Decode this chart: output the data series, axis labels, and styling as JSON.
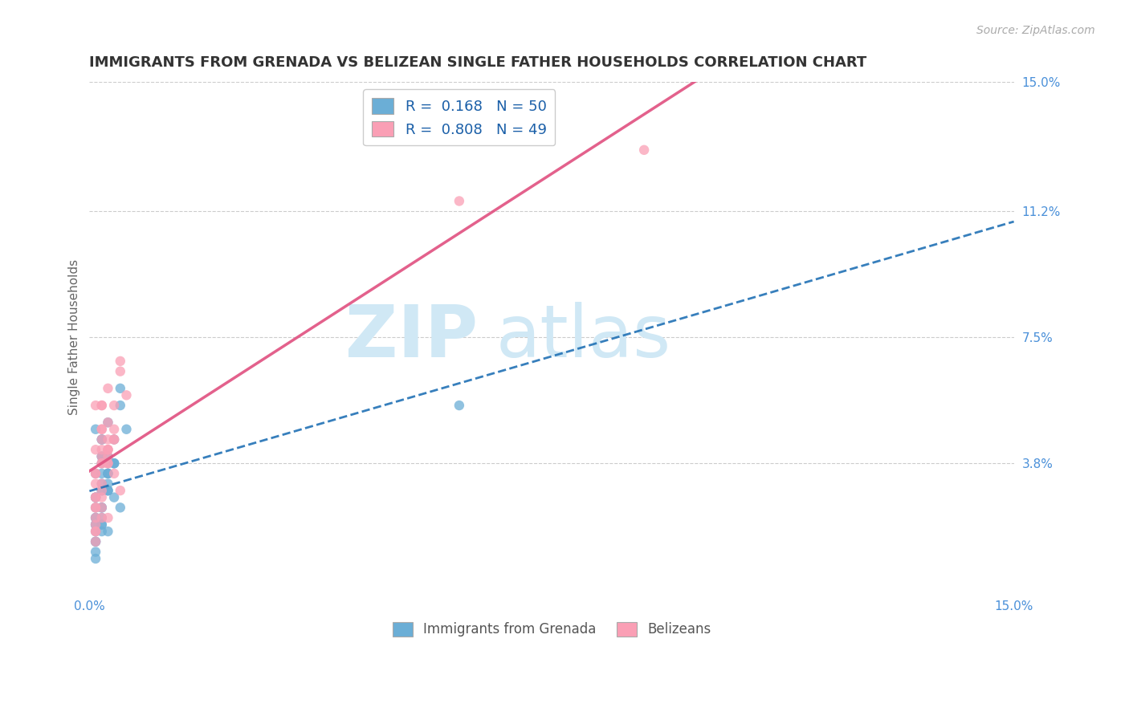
{
  "title": "IMMIGRANTS FROM GRENADA VS BELIZEAN SINGLE FATHER HOUSEHOLDS CORRELATION CHART",
  "source_text": "Source: ZipAtlas.com",
  "ylabel": "Single Father Households",
  "x_min": 0.0,
  "x_max": 0.15,
  "y_min": 0.0,
  "y_max": 0.15,
  "y_tick_labels_right": [
    "3.8%",
    "7.5%",
    "11.2%",
    "15.0%"
  ],
  "y_tick_vals_right": [
    0.038,
    0.075,
    0.112,
    0.15
  ],
  "legend_r1": "R =  0.168",
  "legend_n1": "N = 50",
  "legend_r2": "R =  0.808",
  "legend_n2": "N = 49",
  "color_blue": "#6baed6",
  "color_pink": "#fa9fb5",
  "color_blue_dark": "#2171b5",
  "color_pink_dark": "#e05080",
  "watermark_color": "#d0e8f5",
  "grenada_scatter_x": [
    0.001,
    0.002,
    0.001,
    0.003,
    0.002,
    0.004,
    0.001,
    0.002,
    0.003,
    0.005,
    0.001,
    0.002,
    0.001,
    0.003,
    0.001,
    0.002,
    0.004,
    0.003,
    0.005,
    0.002,
    0.001,
    0.002,
    0.003,
    0.001,
    0.002,
    0.003,
    0.004,
    0.001,
    0.002,
    0.003,
    0.005,
    0.001,
    0.002,
    0.003,
    0.001,
    0.002,
    0.004,
    0.003,
    0.001,
    0.002,
    0.003,
    0.001,
    0.002,
    0.006,
    0.001,
    0.002,
    0.004,
    0.06,
    0.003,
    0.002
  ],
  "grenada_scatter_y": [
    0.028,
    0.032,
    0.048,
    0.035,
    0.03,
    0.038,
    0.022,
    0.025,
    0.04,
    0.055,
    0.02,
    0.018,
    0.01,
    0.05,
    0.035,
    0.045,
    0.038,
    0.03,
    0.025,
    0.02,
    0.015,
    0.04,
    0.035,
    0.028,
    0.022,
    0.018,
    0.045,
    0.012,
    0.038,
    0.032,
    0.06,
    0.025,
    0.03,
    0.035,
    0.02,
    0.045,
    0.028,
    0.038,
    0.015,
    0.04,
    0.03,
    0.022,
    0.035,
    0.048,
    0.018,
    0.025,
    0.038,
    0.055,
    0.03,
    0.02
  ],
  "belizean_scatter_x": [
    0.001,
    0.002,
    0.001,
    0.003,
    0.002,
    0.004,
    0.001,
    0.002,
    0.003,
    0.005,
    0.001,
    0.002,
    0.001,
    0.003,
    0.001,
    0.002,
    0.004,
    0.003,
    0.005,
    0.002,
    0.001,
    0.002,
    0.003,
    0.001,
    0.002,
    0.003,
    0.004,
    0.001,
    0.002,
    0.003,
    0.005,
    0.001,
    0.002,
    0.003,
    0.001,
    0.002,
    0.004,
    0.003,
    0.001,
    0.002,
    0.003,
    0.001,
    0.002,
    0.006,
    0.001,
    0.002,
    0.004,
    0.06,
    0.09
  ],
  "belizean_scatter_y": [
    0.035,
    0.04,
    0.055,
    0.042,
    0.038,
    0.048,
    0.028,
    0.032,
    0.05,
    0.065,
    0.025,
    0.022,
    0.015,
    0.06,
    0.042,
    0.055,
    0.045,
    0.038,
    0.03,
    0.025,
    0.018,
    0.048,
    0.042,
    0.035,
    0.028,
    0.022,
    0.055,
    0.018,
    0.045,
    0.04,
    0.068,
    0.032,
    0.038,
    0.042,
    0.025,
    0.055,
    0.035,
    0.045,
    0.02,
    0.048,
    0.038,
    0.028,
    0.042,
    0.058,
    0.022,
    0.03,
    0.045,
    0.115,
    0.13
  ]
}
